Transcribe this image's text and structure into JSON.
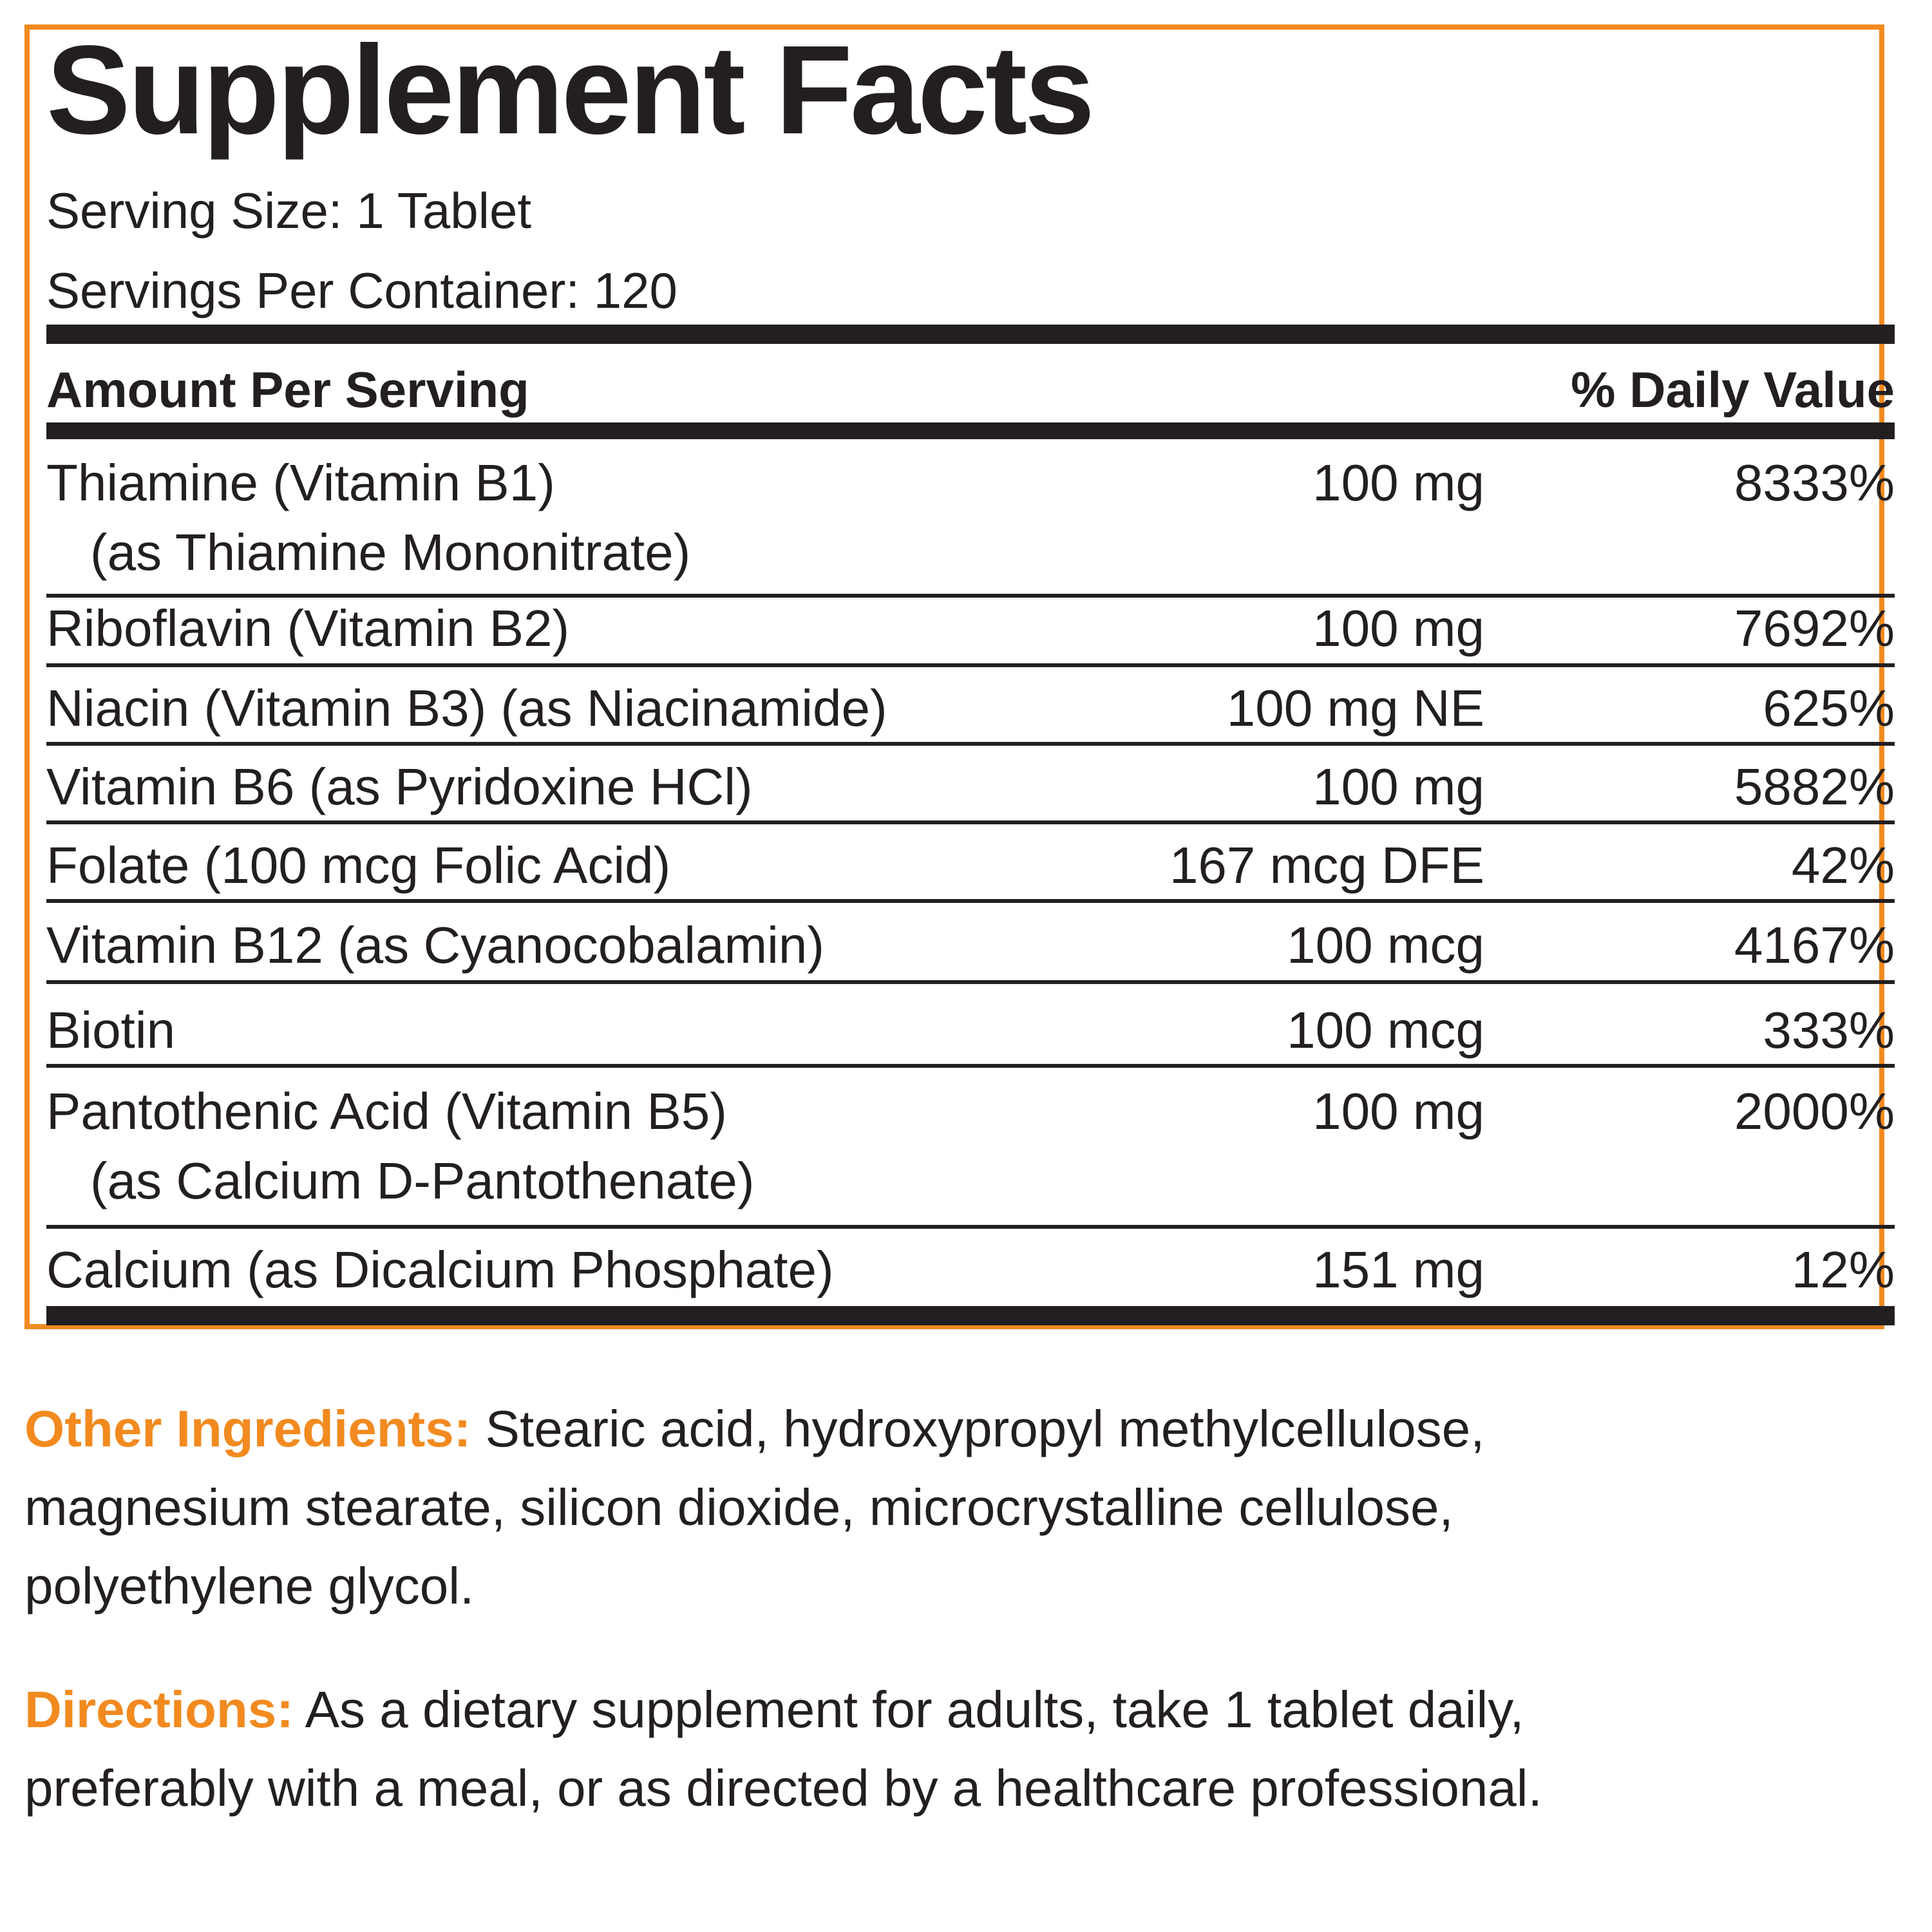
{
  "colors": {
    "accent": "#f28a1f",
    "text": "#231f20"
  },
  "title": "Supplement Facts",
  "serving_size": "Serving Size: 1 Tablet",
  "servings_per_container": "Servings Per Container: 120",
  "header": {
    "amount": "Amount Per Serving",
    "daily_value": "% Daily Value"
  },
  "rows": [
    {
      "name": "Thiamine (Vitamin B1)",
      "sub": "(as Thiamine Mononitrate)",
      "amount": "100 mg",
      "dv": "8333%"
    },
    {
      "name": "Riboflavin (Vitamin B2)",
      "amount": "100 mg",
      "dv": "7692%"
    },
    {
      "name": "Niacin (Vitamin B3) (as Niacinamide)",
      "amount": "100 mg NE",
      "dv": "625%"
    },
    {
      "name": "Vitamin B6 (as Pyridoxine HCl)",
      "amount": "100 mg",
      "dv": "5882%"
    },
    {
      "name": "Folate (100 mcg Folic Acid)",
      "amount": "167 mcg DFE",
      "dv": "42%"
    },
    {
      "name": "Vitamin B12 (as Cyanocobalamin)",
      "amount": "100 mcg",
      "dv": "4167%"
    },
    {
      "name": "Biotin",
      "amount": "100 mcg",
      "dv": "333%"
    },
    {
      "name": "Pantothenic Acid (Vitamin B5)",
      "sub": "(as Calcium D-Pantothenate)",
      "amount": "100 mg",
      "dv": "2000%"
    },
    {
      "name": "Calcium (as Dicalcium Phosphate)",
      "amount": "151 mg",
      "dv": "12%"
    }
  ],
  "other_ingredients": {
    "label": "Other Ingredients:",
    "lines": [
      " Stearic acid, hydroxypropyl methylcellulose,",
      "magnesium stearate, silicon dioxide, microcrystalline cellulose,",
      "polyethylene glycol."
    ]
  },
  "directions": {
    "label": "Directions:",
    "lines": [
      " As a dietary supplement for adults, take 1 tablet daily,",
      "preferably with a meal, or as directed by a healthcare professional."
    ]
  }
}
